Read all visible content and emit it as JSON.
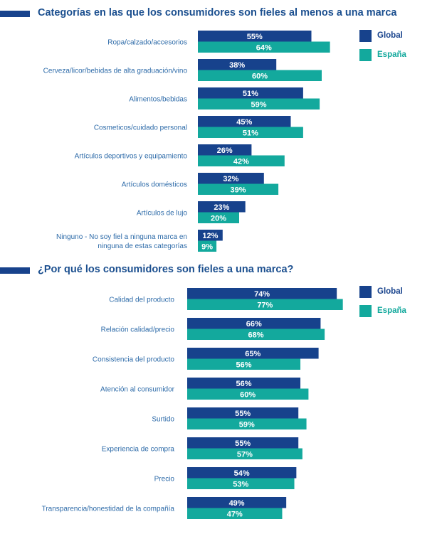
{
  "colors": {
    "global": "#17428c",
    "espana": "#13a99d",
    "title": "#1b4f8f",
    "label": "#2c6aa8"
  },
  "chart_data": [
    {
      "type": "bar",
      "orientation": "horizontal",
      "title": "Categorías en las que los consumidores son fieles al menos a una marca",
      "categories": [
        "Ropa/calzado/accesorios",
        "Cerveza/licor/bebidas de alta graduación/vino",
        "Alimentos/bebidas",
        "Cosmeticos/cuidado personal",
        "Artículos deportivos y equipamiento",
        "Artículos domésticos",
        "Artículos de lujo",
        "Ninguno - No soy fiel a ninguna marca en ninguna de estas categorías"
      ],
      "category_lines": [
        [
          "Ropa/calzado/accesorios"
        ],
        [
          "Cerveza/licor/bebidas de alta graduación/vino"
        ],
        [
          "Alimentos/bebidas"
        ],
        [
          "Cosmeticos/cuidado personal"
        ],
        [
          "Artículos deportivos y equipamiento"
        ],
        [
          "Artículos domésticos"
        ],
        [
          "Artículos de lujo"
        ],
        [
          "Ninguno - No soy fiel a ninguna marca en",
          "ninguna de estas categorías"
        ]
      ],
      "series": [
        {
          "name": "Global",
          "values": [
            55,
            38,
            51,
            45,
            26,
            32,
            23,
            12
          ],
          "labels": [
            "55%",
            "38%",
            "51%",
            "45%",
            "26%",
            "32%",
            "23%",
            "12%"
          ]
        },
        {
          "name": "España",
          "values": [
            64,
            60,
            59,
            51,
            42,
            39,
            20,
            9
          ],
          "labels": [
            "64%",
            "60%",
            "59%",
            "51%",
            "42%",
            "39%",
            "20%",
            "9%"
          ]
        }
      ],
      "unit": "%",
      "xlim": [
        0,
        100
      ],
      "grid": false,
      "legend": "top-right"
    },
    {
      "type": "bar",
      "orientation": "horizontal",
      "title": "¿Por qué los consumidores son fieles a una marca?",
      "categories": [
        "Calidad del producto",
        "Relación calidad/precio",
        "Consistencia del producto",
        "Atención al consumidor",
        "Surtido",
        "Experiencia de compra",
        "Precio",
        "Transparencia/honestidad de la compañía"
      ],
      "category_lines": [
        [
          "Calidad del producto"
        ],
        [
          "Relación calidad/precio"
        ],
        [
          "Consistencia del producto"
        ],
        [
          "Atención al consumidor"
        ],
        [
          "Surtido"
        ],
        [
          "Experiencia de compra"
        ],
        [
          "Precio"
        ],
        [
          "Transparencia/honestidad de la compañía"
        ]
      ],
      "series": [
        {
          "name": "Global",
          "values": [
            74,
            66,
            65,
            56,
            55,
            55,
            54,
            49
          ],
          "labels": [
            "74%",
            "66%",
            "65%",
            "56%",
            "55%",
            "55%",
            "54%",
            "49%"
          ]
        },
        {
          "name": "España",
          "values": [
            77,
            68,
            56,
            60,
            59,
            57,
            53,
            47
          ],
          "labels": [
            "77%",
            "68%",
            "56%",
            "60%",
            "59%",
            "57%",
            "53%",
            "47%"
          ]
        }
      ],
      "unit": "%",
      "xlim": [
        0,
        100
      ],
      "grid": false,
      "legend": "top-right"
    }
  ]
}
